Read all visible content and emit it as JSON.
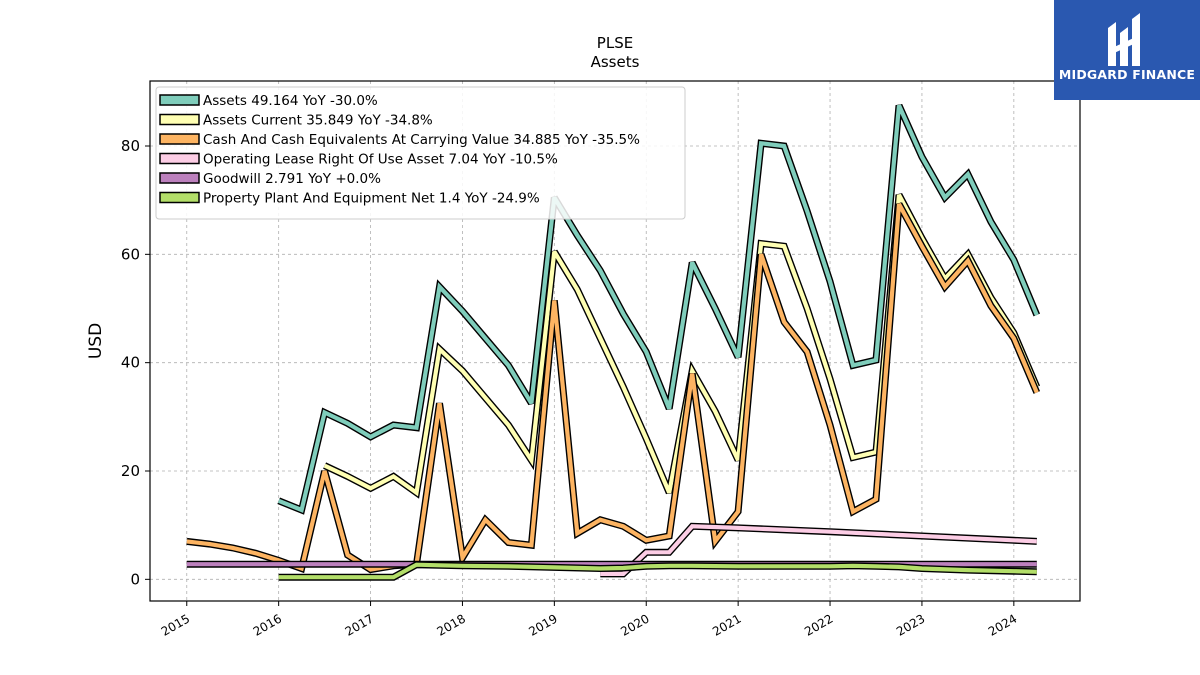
{
  "brand": {
    "name": "MIDGARD FINANCE",
    "color": "#2a58b0"
  },
  "chart_data": {
    "type": "line",
    "title": "PLSE",
    "subtitle": "Assets",
    "ylabel": "USD",
    "xlabel": "",
    "ylim": [
      -4,
      92
    ],
    "yticks": [
      0,
      20,
      40,
      60,
      80
    ],
    "xlim": [
      2014.6,
      2024.72
    ],
    "xticks": [
      "2015",
      "2016",
      "2017",
      "2018",
      "2019",
      "2020",
      "2021",
      "2022",
      "2023",
      "2024"
    ],
    "grid": true,
    "legend_position": "top-left",
    "series": [
      {
        "name": "Assets  49.164 YoY -30.0%",
        "color": "#7fcdbb",
        "points": [
          [
            2016.0,
            14.5
          ],
          [
            2016.25,
            12.8
          ],
          [
            2016.5,
            30.8
          ],
          [
            2016.75,
            28.8
          ],
          [
            2017.0,
            26.3
          ],
          [
            2017.25,
            28.5
          ],
          [
            2017.5,
            28.0
          ],
          [
            2017.75,
            54.0
          ],
          [
            2018.0,
            49.5
          ],
          [
            2018.25,
            44.5
          ],
          [
            2018.5,
            39.5
          ],
          [
            2018.75,
            32.5
          ],
          [
            2019.0,
            70.5
          ],
          [
            2019.25,
            63.5
          ],
          [
            2019.5,
            57.0
          ],
          [
            2019.75,
            49.0
          ],
          [
            2020.0,
            42.0
          ],
          [
            2020.25,
            31.5
          ],
          [
            2020.5,
            58.5
          ],
          [
            2020.75,
            50.0
          ],
          [
            2021.0,
            41.0
          ],
          [
            2021.25,
            80.5
          ],
          [
            2021.5,
            80.0
          ],
          [
            2021.75,
            68.0
          ],
          [
            2022.0,
            55.0
          ],
          [
            2022.25,
            39.5
          ],
          [
            2022.5,
            40.5
          ],
          [
            2022.75,
            87.5
          ],
          [
            2023.0,
            78.0
          ],
          [
            2023.25,
            70.5
          ],
          [
            2023.5,
            74.8
          ],
          [
            2023.75,
            66.0
          ],
          [
            2024.0,
            59.0
          ],
          [
            2024.25,
            48.8
          ]
        ]
      },
      {
        "name": "Assets Current  35.849 YoY -34.8%",
        "color": "#ffffb3",
        "points": [
          [
            2016.5,
            21.0
          ],
          [
            2016.75,
            19.0
          ],
          [
            2017.0,
            16.8
          ],
          [
            2017.25,
            19.0
          ],
          [
            2017.5,
            16.0
          ],
          [
            2017.75,
            42.5
          ],
          [
            2018.0,
            38.5
          ],
          [
            2018.25,
            33.5
          ],
          [
            2018.5,
            28.5
          ],
          [
            2018.75,
            22.0
          ],
          [
            2019.0,
            60.5
          ],
          [
            2019.25,
            53.5
          ],
          [
            2019.5,
            44.5
          ],
          [
            2019.75,
            35.5
          ],
          [
            2020.0,
            26.0
          ],
          [
            2020.25,
            16.0
          ],
          [
            2020.5,
            38.5
          ],
          [
            2020.75,
            31.0
          ],
          [
            2021.0,
            22.0
          ],
          [
            2021.25,
            62.0
          ],
          [
            2021.5,
            61.5
          ],
          [
            2021.75,
            50.0
          ],
          [
            2022.0,
            37.0
          ],
          [
            2022.25,
            22.5
          ],
          [
            2022.5,
            23.5
          ],
          [
            2022.75,
            71.0
          ],
          [
            2023.0,
            63.0
          ],
          [
            2023.25,
            55.5
          ],
          [
            2023.5,
            60.0
          ],
          [
            2023.75,
            52.0
          ],
          [
            2024.0,
            45.5
          ],
          [
            2024.25,
            35.5
          ]
        ]
      },
      {
        "name": "Cash And Cash Equivalents At Carrying Value  34.885 YoY -35.5%",
        "color": "#fdb462",
        "points": [
          [
            2015.0,
            7.0
          ],
          [
            2015.25,
            6.5
          ],
          [
            2015.5,
            5.8
          ],
          [
            2015.75,
            4.8
          ],
          [
            2016.0,
            3.5
          ],
          [
            2016.25,
            2.0
          ],
          [
            2016.5,
            20.0
          ],
          [
            2016.75,
            4.5
          ],
          [
            2017.0,
            1.8
          ],
          [
            2017.25,
            2.5
          ],
          [
            2017.5,
            2.8
          ],
          [
            2017.75,
            32.5
          ],
          [
            2018.0,
            4.0
          ],
          [
            2018.25,
            11.0
          ],
          [
            2018.5,
            6.8
          ],
          [
            2018.75,
            6.3
          ],
          [
            2019.0,
            51.5
          ],
          [
            2019.25,
            8.5
          ],
          [
            2019.5,
            11.0
          ],
          [
            2019.75,
            9.8
          ],
          [
            2020.0,
            7.2
          ],
          [
            2020.25,
            8.0
          ],
          [
            2020.5,
            38.0
          ],
          [
            2020.75,
            7.0
          ],
          [
            2021.0,
            12.5
          ],
          [
            2021.25,
            60.0
          ],
          [
            2021.5,
            47.5
          ],
          [
            2021.75,
            42.0
          ],
          [
            2022.0,
            28.5
          ],
          [
            2022.25,
            12.5
          ],
          [
            2022.5,
            14.8
          ],
          [
            2022.75,
            69.3
          ],
          [
            2023.0,
            61.5
          ],
          [
            2023.25,
            54.0
          ],
          [
            2023.5,
            58.8
          ],
          [
            2023.75,
            50.5
          ],
          [
            2024.0,
            44.5
          ],
          [
            2024.25,
            34.5
          ]
        ]
      },
      {
        "name": "Operating Lease Right Of Use Asset  7.04 YoY -10.5%",
        "color": "#fccde5",
        "points": [
          [
            2019.5,
            1.0
          ],
          [
            2019.75,
            1.0
          ],
          [
            2020.0,
            5.0
          ],
          [
            2020.25,
            5.0
          ],
          [
            2020.5,
            9.8
          ],
          [
            2021.0,
            9.5
          ],
          [
            2022.0,
            8.8
          ],
          [
            2023.0,
            8.0
          ],
          [
            2024.0,
            7.2
          ],
          [
            2024.25,
            7.0
          ]
        ]
      },
      {
        "name": "Goodwill  2.791 YoY +0.0%",
        "color": "#bc80bd",
        "points": [
          [
            2015.0,
            2.8
          ],
          [
            2016.0,
            2.8
          ],
          [
            2017.0,
            2.8
          ],
          [
            2018.0,
            2.8
          ],
          [
            2019.0,
            2.8
          ],
          [
            2020.0,
            2.8
          ],
          [
            2021.0,
            2.8
          ],
          [
            2022.0,
            2.8
          ],
          [
            2023.0,
            2.8
          ],
          [
            2024.0,
            2.8
          ],
          [
            2024.25,
            2.8
          ]
        ]
      },
      {
        "name": "Property Plant And Equipment Net  1.4 YoY -24.9%",
        "color": "#b3de69",
        "points": [
          [
            2016.0,
            0.4
          ],
          [
            2016.5,
            0.4
          ],
          [
            2017.0,
            0.4
          ],
          [
            2017.25,
            0.4
          ],
          [
            2017.5,
            2.7
          ],
          [
            2017.75,
            2.6
          ],
          [
            2018.0,
            2.5
          ],
          [
            2018.5,
            2.4
          ],
          [
            2019.0,
            2.2
          ],
          [
            2019.5,
            2.0
          ],
          [
            2019.75,
            2.1
          ],
          [
            2020.0,
            2.4
          ],
          [
            2020.25,
            2.5
          ],
          [
            2020.5,
            2.5
          ],
          [
            2021.0,
            2.4
          ],
          [
            2021.5,
            2.4
          ],
          [
            2022.0,
            2.4
          ],
          [
            2022.25,
            2.5
          ],
          [
            2022.5,
            2.4
          ],
          [
            2022.75,
            2.3
          ],
          [
            2023.0,
            2.0
          ],
          [
            2023.5,
            1.7
          ],
          [
            2024.0,
            1.5
          ],
          [
            2024.25,
            1.4
          ]
        ]
      }
    ]
  }
}
